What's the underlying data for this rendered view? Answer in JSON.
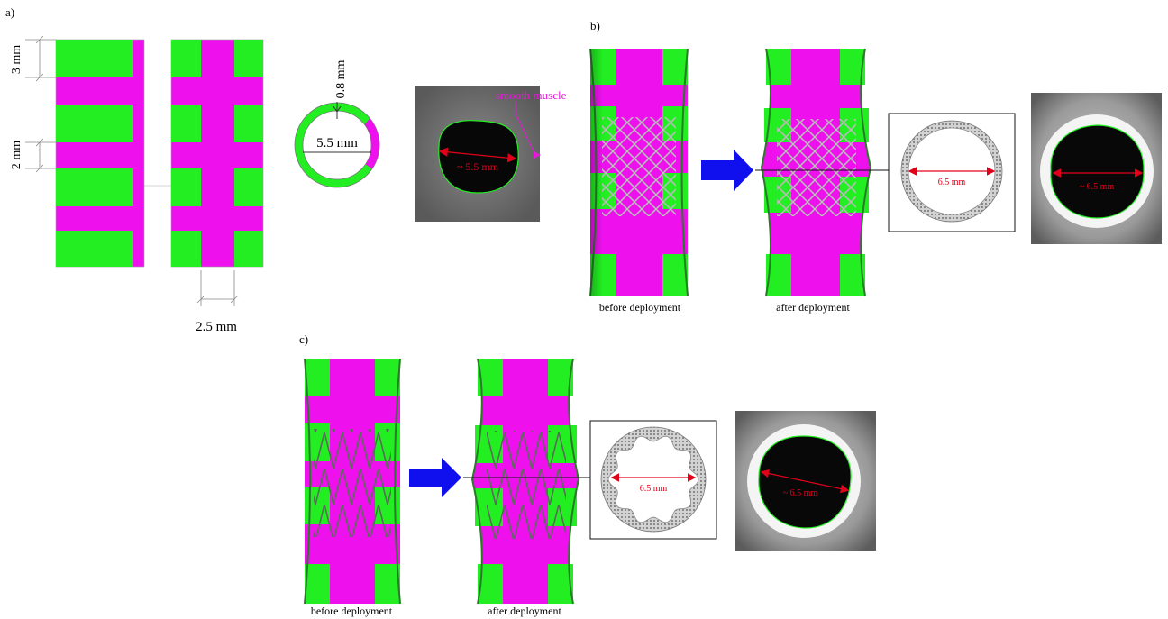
{
  "panels": {
    "a": {
      "label": "a)",
      "dim_3mm": "3 mm",
      "dim_2mm": "2 mm",
      "dim_08mm": "0.8 mm",
      "dim_55mm": "5.5 mm",
      "dim_25mm": "2.5 mm",
      "smooth_muscle": "smooth muscle",
      "ct_diameter": "~ 5.5 mm"
    },
    "b": {
      "label": "b)",
      "before": "before deployment",
      "after": "after deployment",
      "section_diameter": "6.5 mm",
      "ct_diameter": "~ 6.5 mm"
    },
    "c": {
      "label": "c)",
      "before": "before deployment",
      "after": "after deployment",
      "section_diameter": "6.5 mm",
      "ct_diameter": "~ 6.5 mm"
    }
  },
  "colors": {
    "tissue_green": "#22ee22",
    "smooth_muscle_magenta": "#ee11ee",
    "arrow_blue": "#1010ee",
    "measure_red": "#e0001a",
    "ct_dark": "#080808"
  }
}
